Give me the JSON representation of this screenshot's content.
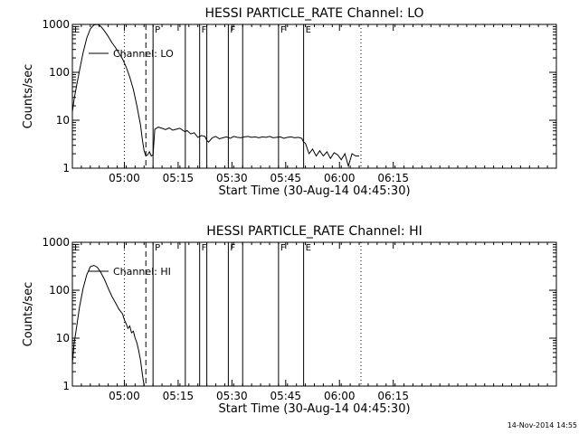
{
  "chart_data": [
    {
      "type": "line",
      "title": "HESSI PARTICLE_RATE Channel: LO",
      "xlabel": "Start Time (30-Aug-14 04:45:30)",
      "ylabel": "Counts/sec",
      "x_unit": "minutes after 04:45:30",
      "xlim": [
        0,
        135
      ],
      "ylim": [
        1,
        1000
      ],
      "y_scale": "log",
      "grid": false,
      "legend_position": "upper-left",
      "x_ticks": [
        "05:00",
        "05:15",
        "05:30",
        "05:45",
        "06:00",
        "06:15"
      ],
      "x_tick_values": [
        14.5,
        29.5,
        44.5,
        59.5,
        74.5,
        89.5
      ],
      "y_ticks": [
        "1",
        "10",
        "100",
        "1000"
      ],
      "y_tick_values": [
        1,
        10,
        100,
        1000
      ],
      "markers": [
        {
          "label": "E",
          "x": 0,
          "style": "solid"
        },
        {
          "label": "",
          "x": 14.5,
          "style": "dotted"
        },
        {
          "label": "",
          "x": 20.5,
          "style": "dashed"
        },
        {
          "label": "P",
          "x": 22.5,
          "style": "solid"
        },
        {
          "label": "",
          "x": 31.5,
          "style": "solid"
        },
        {
          "label": "F",
          "x": 35.5,
          "style": "solid"
        },
        {
          "label": "",
          "x": 37.5,
          "style": "solid"
        },
        {
          "label": "F",
          "x": 43.5,
          "style": "solid"
        },
        {
          "label": "",
          "x": 47.5,
          "style": "solid"
        },
        {
          "label": "F",
          "x": 57.5,
          "style": "solid"
        },
        {
          "label": "E",
          "x": 64.5,
          "style": "solid"
        },
        {
          "label": "",
          "x": 80.5,
          "style": "dotted"
        }
      ],
      "series": [
        {
          "name": "Channel: LO",
          "x": [
            0,
            0.5,
            1,
            2,
            3,
            4,
            5,
            6,
            7,
            8,
            9,
            10,
            11,
            12,
            13,
            14,
            15,
            16,
            17,
            18,
            19,
            19.5,
            20,
            20.5,
            21,
            21.5,
            22,
            22.5,
            23,
            24,
            25,
            26,
            27,
            28,
            29,
            30,
            31,
            31.5,
            32,
            33,
            34,
            35,
            36,
            37,
            37.5,
            38,
            39,
            40,
            41,
            42,
            43,
            44,
            45,
            46,
            47,
            48,
            49,
            50,
            51,
            52,
            53,
            54,
            55,
            56,
            57,
            58,
            59,
            60,
            61,
            62,
            63,
            64,
            64.5,
            65,
            66,
            67,
            68,
            69,
            70,
            71,
            72,
            73,
            74,
            75,
            76,
            77,
            78,
            79,
            80
          ],
          "y": [
            15,
            28,
            45,
            110,
            260,
            520,
            800,
            980,
            1000,
            900,
            720,
            560,
            420,
            330,
            250,
            190,
            130,
            80,
            44,
            20,
            8,
            4,
            2.3,
            1.8,
            1.9,
            2.2,
            1.8,
            1.9,
            6.5,
            7.2,
            6.8,
            6.4,
            6.9,
            6.2,
            6.5,
            6.8,
            6.0,
            5.8,
            6.1,
            5.2,
            5.5,
            4.4,
            4.8,
            4.6,
            3.8,
            3.5,
            4.3,
            4.6,
            4.1,
            4.3,
            4.5,
            4.2,
            4.6,
            4.4,
            4.3,
            4.5,
            4.6,
            4.4,
            4.5,
            4.3,
            4.5,
            4.4,
            4.6,
            4.3,
            4.4,
            4.5,
            4.2,
            4.4,
            4.5,
            4.3,
            4.4,
            4.2,
            3.5,
            3.3,
            2.0,
            2.5,
            1.8,
            2.3,
            1.8,
            2.2,
            1.6,
            2.1,
            1.9,
            1.5,
            2.0,
            1.1,
            2.0,
            1.8,
            1.8
          ]
        }
      ]
    },
    {
      "type": "line",
      "title": "HESSI PARTICLE_RATE Channel: HI",
      "xlabel": "Start Time (30-Aug-14 04:45:30)",
      "ylabel": "Counts/sec",
      "x_unit": "minutes after 04:45:30",
      "xlim": [
        0,
        135
      ],
      "ylim": [
        1,
        1000
      ],
      "y_scale": "log",
      "grid": false,
      "legend_position": "upper-left",
      "x_ticks": [
        "05:00",
        "05:15",
        "05:30",
        "05:45",
        "06:00",
        "06:15"
      ],
      "x_tick_values": [
        14.5,
        29.5,
        44.5,
        59.5,
        74.5,
        89.5
      ],
      "y_ticks": [
        "1",
        "10",
        "100",
        "1000"
      ],
      "y_tick_values": [
        1,
        10,
        100,
        1000
      ],
      "markers": [
        {
          "label": "E",
          "x": 0,
          "style": "solid"
        },
        {
          "label": "",
          "x": 14.5,
          "style": "dotted"
        },
        {
          "label": "",
          "x": 20.5,
          "style": "dashed"
        },
        {
          "label": "P",
          "x": 22.5,
          "style": "solid"
        },
        {
          "label": "",
          "x": 31.5,
          "style": "solid"
        },
        {
          "label": "F",
          "x": 35.5,
          "style": "solid"
        },
        {
          "label": "",
          "x": 37.5,
          "style": "solid"
        },
        {
          "label": "F",
          "x": 43.5,
          "style": "solid"
        },
        {
          "label": "",
          "x": 47.5,
          "style": "solid"
        },
        {
          "label": "F",
          "x": 57.5,
          "style": "solid"
        },
        {
          "label": "E",
          "x": 64.5,
          "style": "solid"
        },
        {
          "label": "",
          "x": 80.5,
          "style": "dotted"
        }
      ],
      "series": [
        {
          "name": "Channel: HI",
          "x": [
            0,
            0.5,
            1,
            2,
            3,
            4,
            5,
            6,
            7,
            8,
            9,
            10,
            11,
            12,
            13,
            14,
            14.5,
            15,
            15.5,
            16,
            16.5,
            17,
            17.5,
            18,
            18.5,
            19,
            19.5,
            20
          ],
          "y": [
            3,
            8,
            14,
            45,
            110,
            210,
            310,
            330,
            300,
            230,
            165,
            110,
            75,
            55,
            40,
            32,
            24,
            20,
            16,
            18,
            13,
            14,
            10,
            8,
            5.5,
            3.5,
            1.8,
            1
          ]
        }
      ]
    }
  ],
  "footer": {
    "timestamp": "14-Nov-2014 14:55"
  }
}
